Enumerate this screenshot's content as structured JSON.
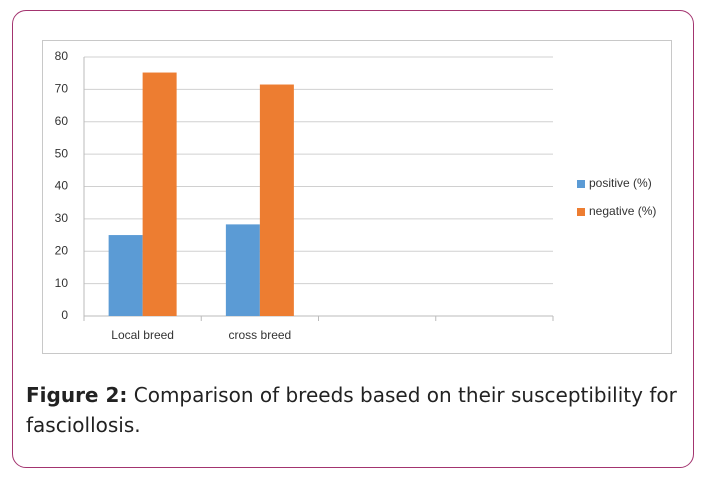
{
  "chart_data": {
    "type": "bar",
    "categories": [
      "Local breed",
      "cross breed",
      null,
      null
    ],
    "series": [
      {
        "name": "positive (%)",
        "color": "#5b9bd5",
        "values": [
          25,
          28.3,
          null,
          null
        ]
      },
      {
        "name": "negative (%)",
        "color": "#ed7d31",
        "values": [
          75.2,
          71.5,
          null,
          null
        ]
      }
    ],
    "ylim": [
      0,
      80
    ],
    "yticks": [
      0,
      10,
      20,
      30,
      40,
      50,
      60,
      70,
      80
    ],
    "grid": true,
    "legend": "right"
  },
  "caption": {
    "label": "Figure 2:",
    "text": "Comparison of breeds based on their susceptibility for fasciollosis."
  }
}
